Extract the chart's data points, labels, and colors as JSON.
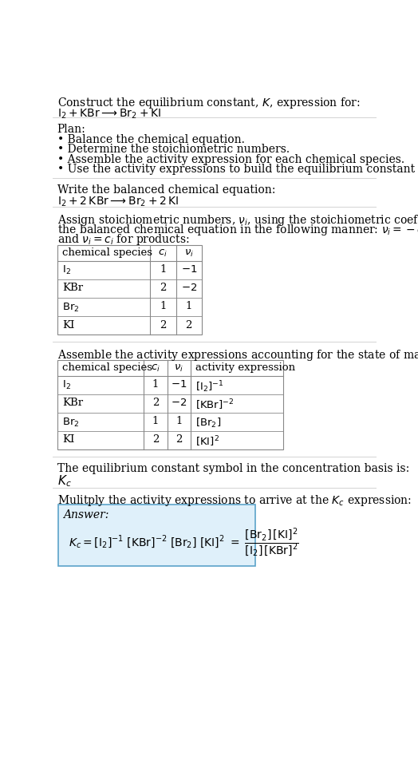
{
  "bg_color": "#ffffff",
  "text_color": "#000000",
  "title_line1": "Construct the equilibrium constant, $K$, expression for:",
  "title_line2": "$\\mathrm{I_2 + KBr \\longrightarrow Br_2 + KI}$",
  "plan_header": "Plan:",
  "plan_items": [
    "• Balance the chemical equation.",
    "• Determine the stoichiometric numbers.",
    "• Assemble the activity expression for each chemical species.",
    "• Use the activity expressions to build the equilibrium constant expression."
  ],
  "balanced_header": "Write the balanced chemical equation:",
  "balanced_eq": "$\\mathrm{I_2 + 2\\,KBr \\longrightarrow Br_2 + 2\\,KI}$",
  "stoich_intro_lines": [
    "Assign stoichiometric numbers, $\\nu_i$, using the stoichiometric coefficients, $c_i$, from",
    "the balanced chemical equation in the following manner: $\\nu_i = -c_i$ for reactants",
    "and $\\nu_i = c_i$ for products:"
  ],
  "table1_headers": [
    "chemical species",
    "$c_i$",
    "$\\nu_i$"
  ],
  "table1_rows": [
    [
      "$\\mathrm{I_2}$",
      "1",
      "$-1$"
    ],
    [
      "KBr",
      "2",
      "$-2$"
    ],
    [
      "$\\mathrm{Br_2}$",
      "1",
      "1"
    ],
    [
      "KI",
      "2",
      "2"
    ]
  ],
  "activity_intro": "Assemble the activity expressions accounting for the state of matter and $\\nu_i$:",
  "table2_headers": [
    "chemical species",
    "$c_i$",
    "$\\nu_i$",
    "activity expression"
  ],
  "table2_rows": [
    [
      "$\\mathrm{I_2}$",
      "1",
      "$-1$",
      "$[\\mathrm{I_2}]^{-1}$"
    ],
    [
      "KBr",
      "2",
      "$-2$",
      "$[\\mathrm{KBr}]^{-2}$"
    ],
    [
      "$\\mathrm{Br_2}$",
      "1",
      "1",
      "$[\\mathrm{Br_2}]$"
    ],
    [
      "KI",
      "2",
      "2",
      "$[\\mathrm{KI}]^2$"
    ]
  ],
  "kc_intro": "The equilibrium constant symbol in the concentration basis is:",
  "kc_symbol": "$K_c$",
  "multiply_intro": "Mulitply the activity expressions to arrive at the $K_c$ expression:",
  "answer_label": "Answer:",
  "answer_box_color": "#dff0fa",
  "answer_box_border": "#5ba3c9",
  "table_border_color": "#888888",
  "hline_color": "#cccccc",
  "fs_body": 10.0,
  "fs_table": 9.5
}
